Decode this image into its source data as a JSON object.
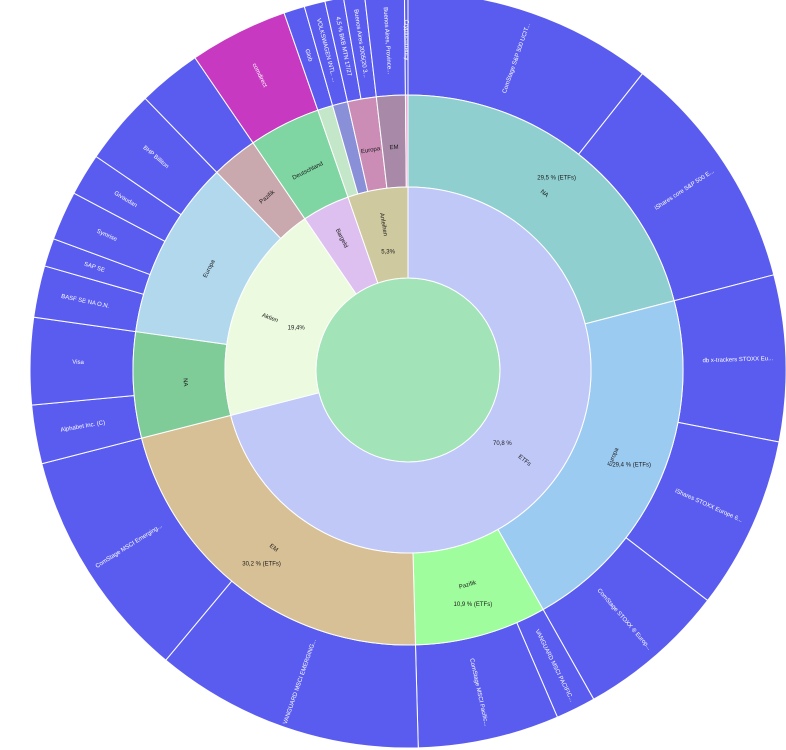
{
  "chart_data": {
    "type": "sunburst",
    "title": "",
    "nodes": [
      {
        "label": "ETFs",
        "value": 70.8,
        "percent_label": "70,8 %",
        "color": "#c0c8f8",
        "children": [
          {
            "label": "NA",
            "value": 29.5,
            "percent_label": "29,5 % (ETFs)",
            "color": "#8fcfcf",
            "children": [
              {
                "label": "ComStage S&P 500 UCIT...",
                "value": 15.0,
                "color": "#5a5cf0"
              },
              {
                "label": "iShares core S&P 500 E...",
                "value": 14.5,
                "color": "#5a5cf0"
              }
            ]
          },
          {
            "label": "Europa",
            "value": 29.4,
            "percent_label": "29,4 % (ETFs)",
            "color": "#9ccbf2",
            "children": [
              {
                "label": "db x-trackers STOXX Eu...",
                "value": 10.0,
                "color": "#5a5cf0"
              },
              {
                "label": "iShares STOXX Europe 6...",
                "value": 10.4,
                "color": "#5a5cf0"
              },
              {
                "label": "ComStage STOXX ® Europ...",
                "value": 9.0,
                "color": "#5a5cf0"
              }
            ]
          },
          {
            "label": "Pazifik",
            "value": 10.9,
            "percent_label": "10,9 % (ETFs)",
            "color": "#9ffd9d",
            "children": [
              {
                "label": "VANGUARD MSCI PACIFIC...",
                "value": 2.4,
                "color": "#5a5cf0"
              },
              {
                "label": "ComStage MSCI Pacific...",
                "value": 8.5,
                "color": "#5a5cf0"
              }
            ]
          },
          {
            "label": "EM",
            "value": 30.2,
            "percent_label": "30,2 % (ETFs)",
            "color": "#d7c095",
            "children": [
              {
                "label": "VANGUARD MSCI EMERGING...",
                "value": 16.2,
                "color": "#5a5cf0"
              },
              {
                "label": "ComStage MSCI Emerging...",
                "value": 14.0,
                "color": "#5a5cf0"
              }
            ]
          }
        ]
      },
      {
        "label": "Aktien",
        "value": 19.4,
        "percent_label": "19,4%",
        "color": "#ecfae0",
        "children": [
          {
            "label": "NA",
            "value": 6.2,
            "color": "#7fcc98",
            "children": [
              {
                "label": "Alphabet Inc. (C)",
                "value": 2.5,
                "color": "#5a5cf0"
              },
              {
                "label": "Visa",
                "value": 3.7,
                "color": "#5a5cf0"
              }
            ]
          },
          {
            "label": "Europa",
            "value": 10.5,
            "color": "#b2d8ee",
            "children": [
              {
                "label": "BASF SE NA O.N.",
                "value": 2.2,
                "color": "#5a5cf0"
              },
              {
                "label": "SAP SE",
                "value": 1.2,
                "color": "#5a5cf0"
              },
              {
                "label": "Symrise",
                "value": 2.1,
                "color": "#5a5cf0"
              },
              {
                "label": "Givaudan",
                "value": 1.8,
                "color": "#5a5cf0"
              },
              {
                "label": "BHP Billiton",
                "value": 3.2,
                "color": "#5a5cf0"
              }
            ]
          },
          {
            "label": "Pazifik",
            "value": 2.7,
            "color": "#c9a8ae",
            "children": [
              {
                "label": "",
                "value": 2.7,
                "color": "#5a5cf0"
              }
            ]
          }
        ]
      },
      {
        "label": "Bargeld",
        "value": 4.2,
        "color": "#dec0f0",
        "children": [
          {
            "label": "Deutschland",
            "value": 4.2,
            "color": "#7fd6a3",
            "children": [
              {
                "label": "comdirect",
                "value": 4.2,
                "color": "#c639c0"
              }
            ]
          }
        ]
      },
      {
        "label": "Anleihen",
        "value": 5.3,
        "percent_label": "5,3%",
        "color": "#cec99e",
        "children": [
          {
            "label": "",
            "value": 0.9,
            "color": "#c4e6c9",
            "children": [
              {
                "label": "Glob",
                "value": 0.9,
                "color": "#5a5cf0"
              }
            ]
          },
          {
            "label": "",
            "value": 0.9,
            "color": "#8a90d8",
            "children": [
              {
                "label": "VOLKSWAGEN INTL. ...",
                "value": 0.9,
                "color": "#5a5cf0"
              }
            ]
          },
          {
            "label": "Europa",
            "value": 1.7,
            "color": "#cb8db6",
            "children": [
              {
                "label": "4,5 % BKB MTN 17/27",
                "value": 0.8,
                "color": "#5a5cf0"
              },
              {
                "label": "Buenos Aires 2005(20 3...",
                "value": 0.9,
                "color": "#5a5cf0"
              }
            ]
          },
          {
            "label": "EM",
            "value": 1.7,
            "color": "#a88aa8",
            "children": [
              {
                "label": "Buenos Aires, Province...",
                "value": 1.7,
                "color": "#5a5cf0"
              }
            ]
          },
          {
            "label": "",
            "value": 0.15,
            "color": "#e7a6d5",
            "children": [
              {
                "label": "Cryptocurrency",
                "value": 0.15,
                "color": "#5a5cf0"
              }
            ]
          }
        ]
      }
    ]
  }
}
